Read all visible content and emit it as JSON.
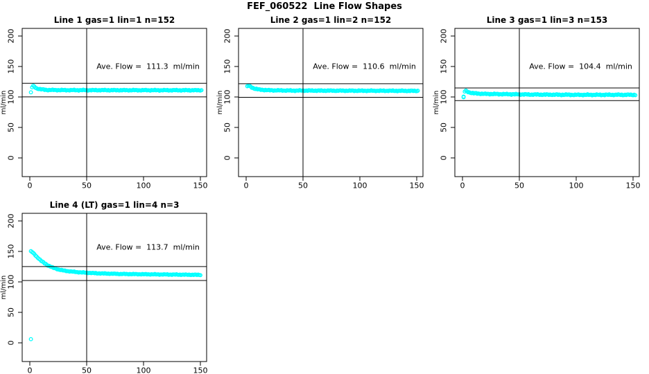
{
  "page": {
    "title": "FEF_060522  Line Flow Shapes"
  },
  "colors": {
    "background": "#FFFFFF",
    "data_point": "#00FFFF",
    "axis_and_lines": "#000000"
  },
  "axes": {
    "x_ticks": [
      0,
      50,
      100,
      150
    ],
    "y_ticks": [
      0,
      50,
      100,
      150,
      200
    ],
    "y_label": "ml/min",
    "x_range": [
      -6.7,
      155.5
    ],
    "y_range": [
      -30.8,
      213.0
    ],
    "marker_vline_x": 50,
    "grid": false
  },
  "chart_data": [
    {
      "type": "scatter",
      "title": "Line 1 gas=1 lin=1 n=152",
      "gas": 1,
      "lin": 1,
      "n": 152,
      "annotation": "Ave. Flow =  111.3  ml/min",
      "ave_flow_ml_min": 111.3,
      "ref_line_upper": 122.4,
      "ref_line_lower": 100.2,
      "x_start": 1,
      "x_end": 151,
      "y_profile": [
        [
          1,
          107
        ],
        [
          2,
          116
        ],
        [
          3,
          118
        ],
        [
          4,
          117
        ],
        [
          6,
          114
        ],
        [
          10,
          112.5
        ],
        [
          15,
          111.5
        ],
        [
          30,
          111.2
        ],
        [
          151,
          111
        ]
      ],
      "noise": 0.8,
      "outliers": [],
      "annotation_pos": {
        "x": 104,
        "y": 150
      }
    },
    {
      "type": "scatter",
      "title": "Line 2 gas=1 lin=2 n=152",
      "gas": 1,
      "lin": 2,
      "n": 152,
      "annotation": "Ave. Flow =  110.6  ml/min",
      "ave_flow_ml_min": 110.6,
      "ref_line_upper": 121.7,
      "ref_line_lower": 99.5,
      "x_start": 1,
      "x_end": 151,
      "y_profile": [
        [
          1,
          117
        ],
        [
          2,
          118.5
        ],
        [
          3,
          118
        ],
        [
          5,
          115.5
        ],
        [
          8,
          113.5
        ],
        [
          12,
          112
        ],
        [
          20,
          111
        ],
        [
          40,
          110.5
        ],
        [
          151,
          110
        ]
      ],
      "noise": 0.8,
      "outliers": [],
      "annotation_pos": {
        "x": 104,
        "y": 150
      }
    },
    {
      "type": "scatter",
      "title": "Line 3 gas=1 lin=3 n=153",
      "gas": 1,
      "lin": 3,
      "n": 153,
      "annotation": "Ave. Flow =  104.4  ml/min",
      "ave_flow_ml_min": 104.4,
      "ref_line_upper": 114.8,
      "ref_line_lower": 94.0,
      "x_start": 1,
      "x_end": 152,
      "y_profile": [
        [
          1,
          100
        ],
        [
          2,
          109
        ],
        [
          3,
          110
        ],
        [
          4,
          109
        ],
        [
          6,
          107.5
        ],
        [
          10,
          106
        ],
        [
          20,
          105
        ],
        [
          60,
          104
        ],
        [
          100,
          103.5
        ],
        [
          152,
          103.5
        ]
      ],
      "noise": 0.9,
      "outliers": [
        [
          1,
          99.5
        ]
      ],
      "annotation_pos": {
        "x": 104,
        "y": 150
      }
    },
    {
      "type": "scatter",
      "title": "Line 4 (LT) gas=1 lin=4 n=3",
      "gas": 1,
      "lin": 4,
      "n": 3,
      "lt": true,
      "annotation": "Ave. Flow =  113.7  ml/min",
      "ave_flow_ml_min": 113.7,
      "ref_line_upper": 125.1,
      "ref_line_lower": 102.3,
      "x_start": 1,
      "x_end": 150,
      "y_profile": [
        [
          1,
          150
        ],
        [
          2,
          149
        ],
        [
          4,
          145.5
        ],
        [
          6,
          141.5
        ],
        [
          8,
          138
        ],
        [
          10,
          134.5
        ],
        [
          13,
          130.5
        ],
        [
          16,
          127
        ],
        [
          20,
          123.5
        ],
        [
          25,
          120.5
        ],
        [
          30,
          118.5
        ],
        [
          36,
          117
        ],
        [
          45,
          115.5
        ],
        [
          60,
          114
        ],
        [
          80,
          113
        ],
        [
          100,
          112.5
        ],
        [
          125,
          112
        ],
        [
          150,
          111.5
        ]
      ],
      "noise": 0.6,
      "outliers": [
        [
          1,
          6
        ]
      ],
      "annotation_pos": {
        "x": 104,
        "y": 157
      }
    }
  ]
}
